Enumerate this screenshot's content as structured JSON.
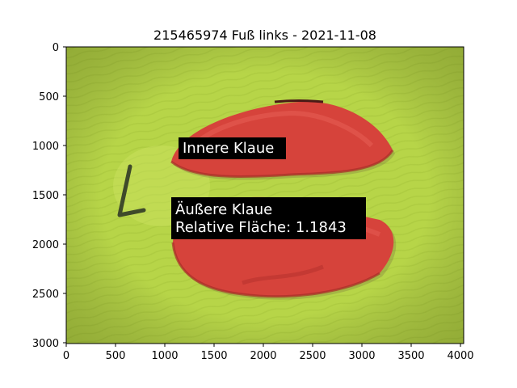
{
  "figure": {
    "title": "215465974 Fuß links - 2021-11-08"
  },
  "axes": {
    "x_ticks": [
      "0",
      "500",
      "1000",
      "1500",
      "2000",
      "2500",
      "3000",
      "3500",
      "4000"
    ],
    "y_ticks": [
      "0",
      "500",
      "1000",
      "1500",
      "2000",
      "2500",
      "3000"
    ],
    "x_range": [
      0,
      4032
    ],
    "y_range": [
      3024,
      0
    ]
  },
  "annotations": {
    "inner_label": "Innere Klaue",
    "outer_label": "Äußere Klaue",
    "outer_area": "Relative Fläche: 1.1843"
  },
  "colors": {
    "background_green": "#b6d34a",
    "claw_overlay": "#d9423c",
    "label_box": "#000000"
  }
}
